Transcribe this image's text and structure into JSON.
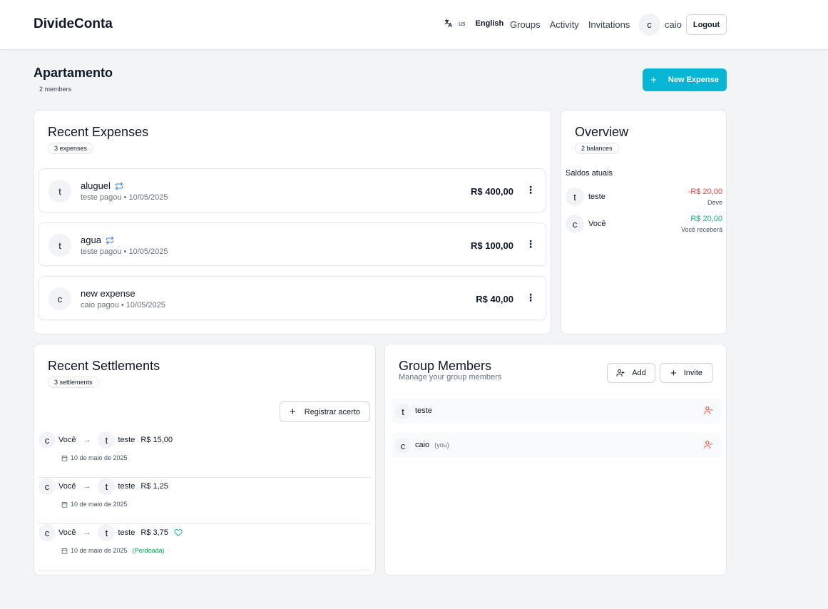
{
  "header": {
    "brand": "DivideConta",
    "language_code": "us",
    "language_name": "English",
    "nav": [
      "Groups",
      "Activity",
      "Invitations"
    ],
    "user_initial": "c",
    "user_name": "caio",
    "logout_label": "Logout"
  },
  "group": {
    "title": "Apartamento",
    "members_count": "2 members",
    "new_expense_label": "New Expense"
  },
  "expenses": {
    "title": "Recent Expenses",
    "count": "3 expenses",
    "items": [
      {
        "initial": "t",
        "name": "aluguel",
        "recurring": true,
        "sub": "teste pagou • 10/05/2025",
        "amount": "R$ 400,00"
      },
      {
        "initial": "t",
        "name": "agua",
        "recurring": true,
        "sub": "teste pagou • 10/05/2025",
        "amount": "R$ 100,00"
      },
      {
        "initial": "c",
        "name": "new expense",
        "recurring": false,
        "sub": "caio pagou • 10/05/2025",
        "amount": "R$ 40,00"
      }
    ]
  },
  "overview": {
    "title": "Overview",
    "count": "2 balances",
    "subtitle": "Saldos atuais",
    "rows": [
      {
        "initial": "t",
        "name": "teste",
        "amount": "-R$ 20,00",
        "note": "Deve",
        "color": "#ef4444"
      },
      {
        "initial": "c",
        "name": "Você",
        "amount": "R$ 20,00",
        "note": "Você receberá",
        "color": "#10b981"
      }
    ]
  },
  "settlements": {
    "title": "Recent Settlements",
    "count": "3 settlements",
    "register_label": "Registrar acerto",
    "items": [
      {
        "from_initial": "c",
        "from": "Você",
        "to_initial": "t",
        "to": "teste",
        "amount": "R$ 15,00",
        "date": "10 de maio de 2025",
        "forgiven": ""
      },
      {
        "from_initial": "c",
        "from": "Você",
        "to_initial": "t",
        "to": "teste",
        "amount": "R$ 1,25",
        "date": "10 de maio de 2025",
        "forgiven": ""
      },
      {
        "from_initial": "c",
        "from": "Você",
        "to_initial": "t",
        "to": "teste",
        "amount": "R$ 3,75",
        "date": "10 de maio de 2025",
        "forgiven": "(Perdoada)"
      }
    ]
  },
  "members": {
    "title": "Group Members",
    "description": "Manage your group members",
    "add_label": "Add",
    "invite_label": "Invite",
    "items": [
      {
        "initial": "t",
        "name": "teste",
        "you": ""
      },
      {
        "initial": "c",
        "name": "caio",
        "you": "(you)"
      }
    ]
  },
  "colors": {
    "accent": "#06b6d4",
    "negative": "#ef4444",
    "positive": "#10b981",
    "forgiven": "#16a34a"
  }
}
